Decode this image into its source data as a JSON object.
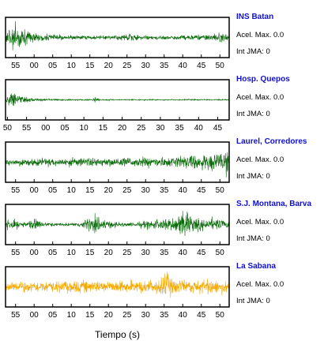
{
  "chart_data": {
    "type": "line",
    "xlabel": "Tiempo (s)",
    "panels": [
      {
        "station": "INS Batan",
        "acel_label": "Acel. Max. 0.0",
        "jma_label": "Int JMA: 0",
        "color": "#0a6a0a",
        "xlim": [
          52.3,
          112.5
        ],
        "tick_values": [
          55,
          60,
          65,
          70,
          75,
          80,
          85,
          90,
          95,
          100,
          105,
          110
        ],
        "tick_labels": [
          "55",
          "00",
          "05",
          "10",
          "15",
          "20",
          "25",
          "30",
          "35",
          "40",
          "45",
          "50"
        ],
        "envelope": [
          {
            "t": 52.3,
            "a": 0.45
          },
          {
            "t": 53.5,
            "a": 0.7
          },
          {
            "t": 55.5,
            "a": 0.95
          },
          {
            "t": 57.0,
            "a": 0.6
          },
          {
            "t": 59.0,
            "a": 0.35
          },
          {
            "t": 62.0,
            "a": 0.25
          },
          {
            "t": 66.0,
            "a": 0.18
          },
          {
            "t": 70.0,
            "a": 0.15
          },
          {
            "t": 75.0,
            "a": 0.12
          },
          {
            "t": 80.0,
            "a": 0.12
          },
          {
            "t": 84.0,
            "a": 0.2
          },
          {
            "t": 85.5,
            "a": 0.35
          },
          {
            "t": 87.0,
            "a": 0.18
          },
          {
            "t": 90.0,
            "a": 0.14
          },
          {
            "t": 95.0,
            "a": 0.14
          },
          {
            "t": 100.0,
            "a": 0.16
          },
          {
            "t": 105.0,
            "a": 0.18
          },
          {
            "t": 110.0,
            "a": 0.3
          },
          {
            "t": 112.5,
            "a": 0.28
          }
        ]
      },
      {
        "station": "Hosp. Quepos",
        "acel_label": "Acel. Max. 0.0",
        "jma_label": "Int JMA: 0",
        "color": "#0a6a0a",
        "xlim": [
          49.5,
          108.0
        ],
        "tick_values": [
          50,
          55,
          60,
          65,
          70,
          75,
          80,
          85,
          90,
          95,
          100,
          105
        ],
        "tick_labels": [
          "50",
          "55",
          "00",
          "05",
          "10",
          "15",
          "20",
          "25",
          "30",
          "35",
          "40",
          "45"
        ],
        "envelope": [
          {
            "t": 49.5,
            "a": 0.15
          },
          {
            "t": 50.5,
            "a": 0.4
          },
          {
            "t": 51.3,
            "a": 0.7
          },
          {
            "t": 52.3,
            "a": 0.35
          },
          {
            "t": 54.0,
            "a": 0.18
          },
          {
            "t": 58.0,
            "a": 0.1
          },
          {
            "t": 65.0,
            "a": 0.06
          },
          {
            "t": 72.0,
            "a": 0.05
          },
          {
            "t": 73.0,
            "a": 0.25
          },
          {
            "t": 74.0,
            "a": 0.05
          },
          {
            "t": 80.0,
            "a": 0.04
          },
          {
            "t": 90.0,
            "a": 0.04
          },
          {
            "t": 100.0,
            "a": 0.04
          },
          {
            "t": 108.0,
            "a": 0.04
          }
        ]
      },
      {
        "station": "Laurel, Corredores",
        "acel_label": "Acel. Max. 0.0",
        "jma_label": "Int JMA: 0",
        "color": "#0a6a0a",
        "xlim": [
          52.3,
          112.5
        ],
        "tick_values": [
          55,
          60,
          65,
          70,
          75,
          80,
          85,
          90,
          95,
          100,
          105,
          110
        ],
        "tick_labels": [
          "55",
          "00",
          "05",
          "10",
          "15",
          "20",
          "25",
          "30",
          "35",
          "40",
          "45",
          "50"
        ],
        "envelope": [
          {
            "t": 52.3,
            "a": 0.25
          },
          {
            "t": 60.0,
            "a": 0.25
          },
          {
            "t": 70.0,
            "a": 0.27
          },
          {
            "t": 80.0,
            "a": 0.3
          },
          {
            "t": 90.0,
            "a": 0.32
          },
          {
            "t": 98.0,
            "a": 0.38
          },
          {
            "t": 102.0,
            "a": 0.48
          },
          {
            "t": 106.0,
            "a": 0.55
          },
          {
            "t": 109.0,
            "a": 0.6
          },
          {
            "t": 111.5,
            "a": 0.7
          },
          {
            "t": 112.0,
            "a": 1.0
          },
          {
            "t": 112.5,
            "a": 0.9
          }
        ]
      },
      {
        "station": "S.J. Montana, Barva",
        "acel_label": "Acel. Max. 0.0",
        "jma_label": "Int JMA: 0",
        "color": "#0a6a0a",
        "xlim": [
          52.3,
          112.5
        ],
        "tick_values": [
          55,
          60,
          65,
          70,
          75,
          80,
          85,
          90,
          95,
          100,
          105,
          110
        ],
        "tick_labels": [
          "55",
          "00",
          "05",
          "10",
          "15",
          "20",
          "25",
          "30",
          "35",
          "40",
          "45",
          "50"
        ],
        "envelope": [
          {
            "t": 52.3,
            "a": 0.3
          },
          {
            "t": 54.5,
            "a": 0.5
          },
          {
            "t": 56.0,
            "a": 0.25
          },
          {
            "t": 58.0,
            "a": 0.15
          },
          {
            "t": 60.5,
            "a": 0.45
          },
          {
            "t": 62.0,
            "a": 0.15
          },
          {
            "t": 66.0,
            "a": 0.12
          },
          {
            "t": 70.0,
            "a": 0.1
          },
          {
            "t": 73.0,
            "a": 0.25
          },
          {
            "t": 76.5,
            "a": 0.55
          },
          {
            "t": 79.0,
            "a": 0.3
          },
          {
            "t": 83.0,
            "a": 0.15
          },
          {
            "t": 86.0,
            "a": 0.12
          },
          {
            "t": 90.0,
            "a": 0.25
          },
          {
            "t": 93.0,
            "a": 0.35
          },
          {
            "t": 97.0,
            "a": 0.4
          },
          {
            "t": 100.5,
            "a": 0.95
          },
          {
            "t": 102.5,
            "a": 0.5
          },
          {
            "t": 105.0,
            "a": 0.35
          },
          {
            "t": 108.5,
            "a": 0.45
          },
          {
            "t": 110.5,
            "a": 0.3
          },
          {
            "t": 112.5,
            "a": 0.25
          }
        ]
      },
      {
        "station": "La Sabana",
        "acel_label": "Acel. Max. 0.0",
        "jma_label": "Int JMA: 0",
        "color": "#f5a800",
        "xlim": [
          52.3,
          112.5
        ],
        "tick_values": [
          55,
          60,
          65,
          70,
          75,
          80,
          85,
          90,
          95,
          100,
          105,
          110
        ],
        "tick_labels": [
          "55",
          "00",
          "05",
          "10",
          "15",
          "20",
          "25",
          "30",
          "35",
          "40",
          "45",
          "50"
        ],
        "envelope": [
          {
            "t": 52.3,
            "a": 0.35
          },
          {
            "t": 60.0,
            "a": 0.38
          },
          {
            "t": 70.0,
            "a": 0.4
          },
          {
            "t": 80.0,
            "a": 0.4
          },
          {
            "t": 90.0,
            "a": 0.42
          },
          {
            "t": 94.0,
            "a": 0.5
          },
          {
            "t": 95.5,
            "a": 1.0
          },
          {
            "t": 97.0,
            "a": 0.55
          },
          {
            "t": 100.0,
            "a": 0.45
          },
          {
            "t": 105.0,
            "a": 0.45
          },
          {
            "t": 107.5,
            "a": 0.55
          },
          {
            "t": 110.0,
            "a": 0.45
          },
          {
            "t": 112.5,
            "a": 0.45
          }
        ]
      }
    ]
  }
}
